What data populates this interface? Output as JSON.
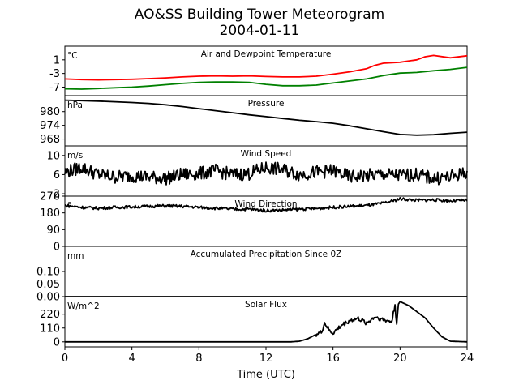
{
  "figure": {
    "title_line1": "AO&SS Building Tower Meteorogram",
    "title_line2": "2004-01-11",
    "xlabel": "Time (UTC)"
  },
  "chart_data": [
    {
      "type": "line",
      "title": "Air and Dewpoint Temperature",
      "unit_label": "°C",
      "ylim": [
        -9.5,
        5
      ],
      "yticks": [
        -7,
        -3,
        1
      ],
      "xlim": [
        0,
        24
      ],
      "series": [
        {
          "color": "#ff0000",
          "points": [
            [
              0,
              -4.6
            ],
            [
              1,
              -4.8
            ],
            [
              2,
              -4.9
            ],
            [
              3,
              -4.8
            ],
            [
              4,
              -4.7
            ],
            [
              5,
              -4.5
            ],
            [
              6,
              -4.3
            ],
            [
              7,
              -4.0
            ],
            [
              8,
              -3.8
            ],
            [
              9,
              -3.7
            ],
            [
              10,
              -3.8
            ],
            [
              11,
              -3.7
            ],
            [
              12,
              -3.9
            ],
            [
              13,
              -4.0
            ],
            [
              14,
              -4.0
            ],
            [
              15,
              -3.8
            ],
            [
              16,
              -3.2
            ],
            [
              17,
              -2.5
            ],
            [
              18,
              -1.6
            ],
            [
              18.5,
              -0.6
            ],
            [
              19,
              0.0
            ],
            [
              20,
              0.3
            ],
            [
              21,
              1.0
            ],
            [
              21.5,
              1.9
            ],
            [
              22,
              2.3
            ],
            [
              23,
              1.6
            ],
            [
              24,
              2.2
            ]
          ]
        },
        {
          "color": "#008000",
          "points": [
            [
              0,
              -7.5
            ],
            [
              1,
              -7.6
            ],
            [
              2,
              -7.4
            ],
            [
              3,
              -7.2
            ],
            [
              4,
              -7.0
            ],
            [
              5,
              -6.7
            ],
            [
              6,
              -6.3
            ],
            [
              7,
              -5.9
            ],
            [
              8,
              -5.6
            ],
            [
              9,
              -5.5
            ],
            [
              10,
              -5.5
            ],
            [
              11,
              -5.6
            ],
            [
              12,
              -6.2
            ],
            [
              13,
              -6.6
            ],
            [
              14,
              -6.6
            ],
            [
              15,
              -6.4
            ],
            [
              16,
              -5.8
            ],
            [
              17,
              -5.2
            ],
            [
              18,
              -4.6
            ],
            [
              19,
              -3.6
            ],
            [
              20,
              -2.9
            ],
            [
              21,
              -2.7
            ],
            [
              22,
              -2.2
            ],
            [
              23,
              -1.8
            ],
            [
              24,
              -1.2
            ]
          ]
        }
      ]
    },
    {
      "type": "line",
      "title": "Pressure",
      "unit_label": "hPa",
      "ylim": [
        965,
        987
      ],
      "yticks": [
        968,
        974,
        980
      ],
      "xlim": [
        0,
        24
      ],
      "series": [
        {
          "color": "#000000",
          "points": [
            [
              0,
              985.0
            ],
            [
              1,
              984.8
            ],
            [
              2,
              984.6
            ],
            [
              3,
              984.3
            ],
            [
              4,
              984.0
            ],
            [
              5,
              983.6
            ],
            [
              6,
              983.0
            ],
            [
              7,
              982.2
            ],
            [
              8,
              981.3
            ],
            [
              9,
              980.4
            ],
            [
              10,
              979.5
            ],
            [
              11,
              978.6
            ],
            [
              12,
              977.8
            ],
            [
              13,
              977.0
            ],
            [
              14,
              976.2
            ],
            [
              15,
              975.6
            ],
            [
              16,
              974.9
            ],
            [
              17,
              973.8
            ],
            [
              18,
              972.5
            ],
            [
              19,
              971.2
            ],
            [
              20,
              970.0
            ],
            [
              21,
              969.7
            ],
            [
              22,
              969.9
            ],
            [
              23,
              970.5
            ],
            [
              24,
              971.0
            ]
          ]
        }
      ]
    },
    {
      "type": "line",
      "title": "Wind Speed",
      "unit_label": "m/s",
      "ylim": [
        1.5,
        12
      ],
      "yticks": [
        2,
        6,
        10
      ],
      "xlim": [
        0,
        24
      ],
      "series": [
        {
          "color": "#000000",
          "noise": 1.4,
          "points": [
            [
              0,
              6.5
            ],
            [
              1,
              7.5
            ],
            [
              2,
              6.0
            ],
            [
              3,
              5.5
            ],
            [
              4,
              5.8
            ],
            [
              5,
              5.5
            ],
            [
              6,
              5.2
            ],
            [
              7,
              6.0
            ],
            [
              8,
              6.2
            ],
            [
              9,
              6.8
            ],
            [
              10,
              6.0
            ],
            [
              11,
              6.2
            ],
            [
              12,
              7.5
            ],
            [
              13,
              7.0
            ],
            [
              14,
              6.0
            ],
            [
              15,
              6.5
            ],
            [
              16,
              6.8
            ],
            [
              17,
              5.5
            ],
            [
              18,
              5.8
            ],
            [
              19,
              6.0
            ],
            [
              20,
              5.8
            ],
            [
              21,
              6.0
            ],
            [
              22,
              5.2
            ],
            [
              23,
              5.5
            ],
            [
              24,
              6.5
            ]
          ]
        }
      ]
    },
    {
      "type": "line",
      "title": "Wind Direction",
      "unit_label": "°",
      "ylim": [
        0,
        270
      ],
      "yticks": [
        0,
        90,
        180,
        270
      ],
      "xlim": [
        0,
        24
      ],
      "series": [
        {
          "color": "#000000",
          "noise": 8,
          "points": [
            [
              0,
              220
            ],
            [
              1,
              210
            ],
            [
              2,
              205
            ],
            [
              3,
              210
            ],
            [
              4,
              212
            ],
            [
              5,
              215
            ],
            [
              6,
              218
            ],
            [
              7,
              215
            ],
            [
              8,
              210
            ],
            [
              9,
              205
            ],
            [
              10,
              200
            ],
            [
              11,
              200
            ],
            [
              12,
              192
            ],
            [
              13,
              195
            ],
            [
              14,
              200
            ],
            [
              15,
              203
            ],
            [
              16,
              210
            ],
            [
              17,
              215
            ],
            [
              18,
              220
            ],
            [
              19,
              232
            ],
            [
              20,
              255
            ],
            [
              21,
              248
            ],
            [
              22,
              250
            ],
            [
              23,
              245
            ],
            [
              24,
              248
            ]
          ]
        }
      ]
    },
    {
      "type": "line",
      "title": "Accumulated Precipitation Since 0Z",
      "unit_label": "mm",
      "ylim": [
        0,
        0.2
      ],
      "yticks": [
        0.0,
        0.05,
        0.1
      ],
      "ytick_labels": [
        "0.00",
        "0.05",
        "0.10"
      ],
      "xlim": [
        0,
        24
      ],
      "series": [
        {
          "color": "#000000",
          "points": [
            [
              0,
              0
            ],
            [
              24,
              0
            ]
          ]
        }
      ]
    },
    {
      "type": "line",
      "title": "Solar Flux",
      "unit_label": "W/m^2",
      "ylim": [
        -40,
        360
      ],
      "yticks": [
        0,
        110,
        220
      ],
      "xlim": [
        0,
        24
      ],
      "xticks": [
        0,
        4,
        8,
        12,
        16,
        20,
        24
      ],
      "series": [
        {
          "color": "#000000",
          "noise_range": [
            15,
            19.8
          ],
          "noise": 18,
          "points": [
            [
              0,
              0
            ],
            [
              13.5,
              0
            ],
            [
              14,
              5
            ],
            [
              14.5,
              25
            ],
            [
              15,
              60
            ],
            [
              15.3,
              75
            ],
            [
              15.5,
              150
            ],
            [
              15.8,
              85
            ],
            [
              16,
              70
            ],
            [
              16.5,
              130
            ],
            [
              17,
              170
            ],
            [
              17.5,
              185
            ],
            [
              18,
              150
            ],
            [
              18.5,
              200
            ],
            [
              19,
              175
            ],
            [
              19.5,
              160
            ],
            [
              19.7,
              290
            ],
            [
              19.8,
              140
            ],
            [
              19.9,
              300
            ],
            [
              20,
              320
            ],
            [
              20.5,
              290
            ],
            [
              21,
              240
            ],
            [
              21.5,
              190
            ],
            [
              22,
              110
            ],
            [
              22.5,
              40
            ],
            [
              23,
              5
            ],
            [
              24,
              0
            ]
          ]
        }
      ]
    }
  ]
}
